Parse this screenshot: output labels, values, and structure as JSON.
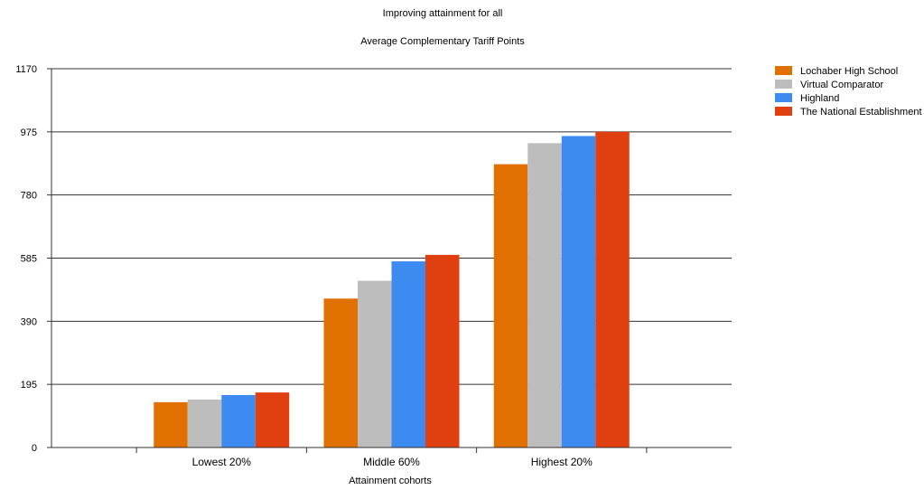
{
  "chart_data": {
    "type": "bar",
    "title": "Improving attainment for all",
    "subtitle": "Average Complementary Tariff Points",
    "xlabel": "Attainment cohorts",
    "ylabel": "",
    "ylim": [
      0,
      1170
    ],
    "yticks": [
      0,
      195,
      390,
      585,
      780,
      975,
      1170
    ],
    "grid": true,
    "legend_position": "top-right",
    "categories": [
      "Lowest 20%",
      "Middle 60%",
      "Highest 20%"
    ],
    "series": [
      {
        "name": "Lochaber High School",
        "color": "#E07000",
        "values": [
          140,
          460,
          875
        ]
      },
      {
        "name": "Virtual Comparator",
        "color": "#BDBDBD",
        "values": [
          148,
          515,
          940
        ]
      },
      {
        "name": "Highland",
        "color": "#3D8AF0",
        "values": [
          162,
          575,
          962
        ]
      },
      {
        "name": "The National Establishment",
        "color": "#E04010",
        "values": [
          170,
          595,
          975
        ]
      }
    ]
  }
}
